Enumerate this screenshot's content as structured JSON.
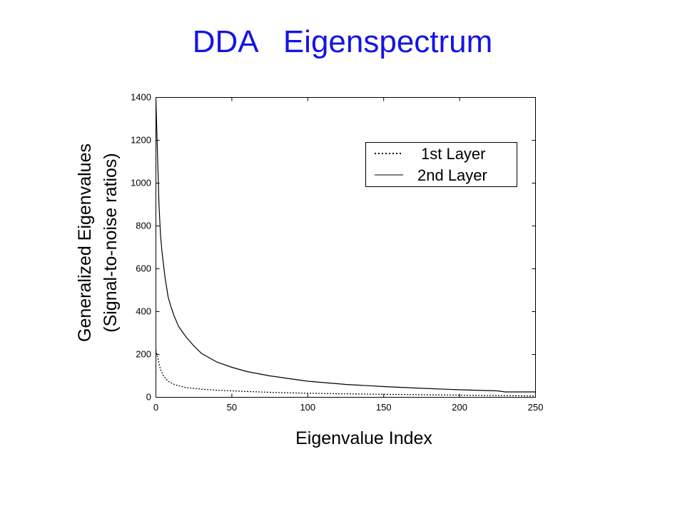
{
  "slide": {
    "title": "DDA   Eigenspectrum"
  },
  "chart_data": {
    "type": "line",
    "xlabel": "Eigenvalue Index",
    "ylabel_line1": "Generalized  Eigenvalues",
    "ylabel_line2": "(Signal-to-noise  ratios)",
    "xlim": [
      0,
      250
    ],
    "ylim": [
      0,
      1400
    ],
    "xticks": [
      0,
      50,
      100,
      150,
      200,
      250
    ],
    "yticks": [
      0,
      200,
      400,
      600,
      800,
      1000,
      1200,
      1400
    ],
    "grid": false,
    "legend_position": "top-right",
    "series": [
      {
        "name": "1st Layer",
        "style": "dotted",
        "color": "#000000",
        "x": [
          0,
          1,
          3,
          5,
          8,
          12,
          16,
          20,
          30,
          40,
          50,
          60,
          80,
          100,
          125,
          150,
          175,
          200,
          225,
          250
        ],
        "y": [
          220,
          190,
          130,
          100,
          75,
          60,
          52,
          45,
          38,
          33,
          30,
          27,
          22,
          19,
          16,
          14,
          12,
          10,
          8,
          6
        ]
      },
      {
        "name": "2nd Layer",
        "style": "solid",
        "color": "#000000",
        "x": [
          0,
          1,
          2,
          3,
          4,
          5,
          6,
          8,
          10,
          12,
          15,
          20,
          25,
          30,
          40,
          50,
          60,
          75,
          90,
          100,
          125,
          150,
          175,
          200,
          225,
          230,
          250
        ],
        "y": [
          1390,
          1150,
          900,
          760,
          680,
          620,
          560,
          470,
          420,
          380,
          330,
          280,
          240,
          205,
          165,
          140,
          120,
          100,
          85,
          75,
          60,
          50,
          42,
          35,
          30,
          25,
          25
        ]
      }
    ]
  }
}
